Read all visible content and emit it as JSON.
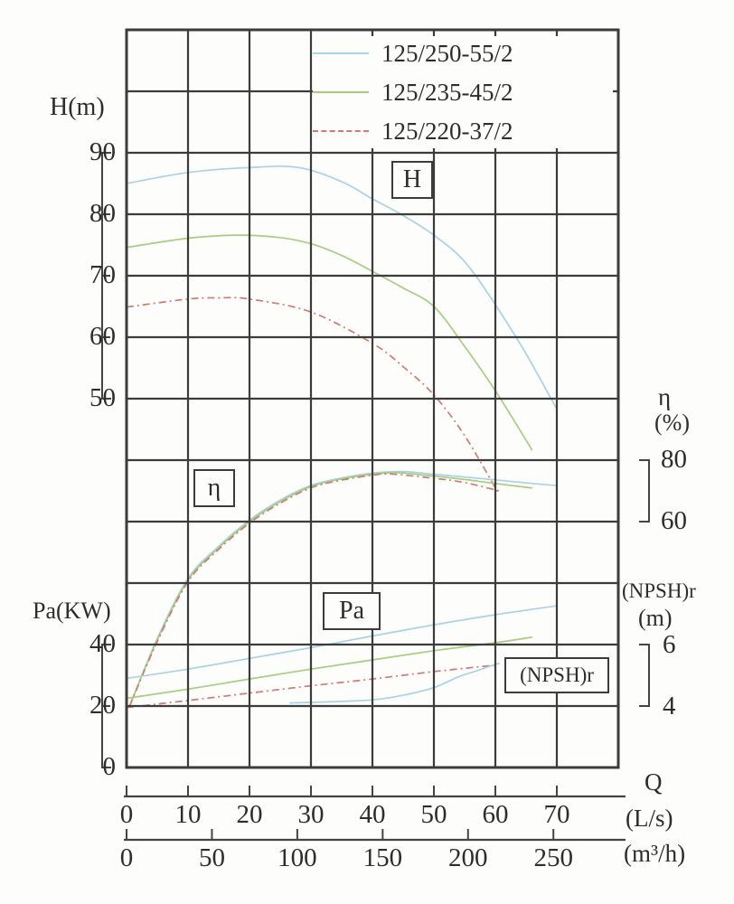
{
  "legend": {
    "items": [
      {
        "label": "125/250-55/2",
        "color": "#a9d2e4",
        "dash": "solid"
      },
      {
        "label": "125/235-45/2",
        "color": "#a6cd80",
        "dash": "solid"
      },
      {
        "label": "125/220-37/2",
        "color": "#cf7b73",
        "dash": "dashed"
      }
    ]
  },
  "axes": {
    "h": {
      "label": "H(m)",
      "ticks": [
        90,
        80,
        70,
        60,
        50
      ]
    },
    "pa": {
      "label": "Pa(KW)",
      "ticks": [
        40,
        20,
        0
      ]
    },
    "eta": {
      "label": "η",
      "unit": "(%)",
      "ticks": [
        80,
        60
      ]
    },
    "npsh": {
      "label": "(NPSH)r",
      "unit": "(m)",
      "ticks": [
        6,
        4
      ]
    },
    "q_ls": {
      "label": "Q",
      "unit": "(L/s)",
      "ticks": [
        0,
        10,
        20,
        30,
        40,
        50,
        60,
        70
      ]
    },
    "q_m3h": {
      "unit": "(m³/h)",
      "ticks": [
        0,
        50,
        100,
        150,
        200,
        250
      ]
    }
  },
  "curve_labels": {
    "h": "H",
    "eta": "η",
    "pa": "Pa",
    "npsh": "(NPSH)r"
  },
  "chart_data": {
    "type": "line",
    "title": "",
    "xlabel": "Q",
    "x_units": [
      "L/s",
      "m³/h"
    ],
    "x_range_ls": [
      0,
      80
    ],
    "grid": true,
    "legend_position": "top-right",
    "y_scales": {
      "H": {
        "unit": "m",
        "labeled_range": [
          50,
          90
        ]
      },
      "eta": {
        "unit": "%",
        "labeled_range": [
          60,
          80
        ]
      },
      "Pa": {
        "unit": "KW",
        "labeled_range": [
          0,
          40
        ]
      },
      "NPSH": {
        "unit": "m",
        "labeled_range": [
          4,
          6
        ]
      }
    },
    "series": [
      {
        "name": "125/250-55/2",
        "quantity": "H",
        "unit": "m",
        "color": "#a9d2e4",
        "dash": null,
        "points": [
          [
            0,
            85
          ],
          [
            10,
            86.8
          ],
          [
            20,
            87.6
          ],
          [
            28,
            87.6
          ],
          [
            35,
            85.3
          ],
          [
            40,
            82.5
          ],
          [
            45,
            79.8
          ],
          [
            50,
            76.6
          ],
          [
            55,
            72.3
          ],
          [
            60,
            65.3
          ],
          [
            65,
            57.3
          ],
          [
            70,
            48.3
          ]
        ]
      },
      {
        "name": "125/235-45/2",
        "quantity": "H",
        "unit": "m",
        "color": "#a6cd80",
        "dash": null,
        "points": [
          [
            0,
            74.6
          ],
          [
            10,
            76.1
          ],
          [
            18,
            76.6
          ],
          [
            25,
            76.2
          ],
          [
            30,
            75.2
          ],
          [
            35,
            73.3
          ],
          [
            40,
            70.7
          ],
          [
            45,
            68
          ],
          [
            50,
            65
          ],
          [
            55,
            58.5
          ],
          [
            60,
            51.3
          ],
          [
            66,
            41.6
          ]
        ]
      },
      {
        "name": "125/220-37/2",
        "quantity": "H",
        "unit": "m",
        "color": "#cf7b73",
        "dash": [
          8,
          4,
          2,
          4
        ],
        "points": [
          [
            0,
            64.9
          ],
          [
            10,
            66.2
          ],
          [
            15,
            66.4
          ],
          [
            20,
            66.2
          ],
          [
            30,
            64.1
          ],
          [
            40,
            59
          ],
          [
            45,
            55.2
          ],
          [
            50,
            50.6
          ],
          [
            55,
            44
          ],
          [
            60.5,
            34.6
          ]
        ]
      },
      {
        "name": "125/250-55/2",
        "quantity": "eta",
        "unit": "%",
        "color": "#a9d2e4",
        "dash": null,
        "points": [
          [
            0.5,
            0
          ],
          [
            5,
            22
          ],
          [
            10,
            41.5
          ],
          [
            15,
            52
          ],
          [
            20,
            60.5
          ],
          [
            25,
            67
          ],
          [
            30,
            71.8
          ],
          [
            35,
            74.2
          ],
          [
            40,
            75.8
          ],
          [
            45,
            76.3
          ],
          [
            50,
            75.4
          ],
          [
            55,
            74.5
          ],
          [
            60,
            73.6
          ],
          [
            65,
            72.6
          ],
          [
            70,
            71.7
          ]
        ]
      },
      {
        "name": "125/235-45/2",
        "quantity": "eta",
        "unit": "%",
        "color": "#a6cd80",
        "dash": null,
        "points": [
          [
            0.5,
            0
          ],
          [
            5,
            21.5
          ],
          [
            10,
            41
          ],
          [
            15,
            51.5
          ],
          [
            20,
            60
          ],
          [
            25,
            66.5
          ],
          [
            30,
            71.4
          ],
          [
            35,
            73.9
          ],
          [
            40,
            75.4
          ],
          [
            44,
            75.9
          ],
          [
            50,
            74.8
          ],
          [
            55,
            73.7
          ],
          [
            60,
            72.4
          ],
          [
            66,
            70.9
          ]
        ]
      },
      {
        "name": "125/220-37/2",
        "quantity": "eta",
        "unit": "%",
        "color": "#cf7b73",
        "dash": [
          8,
          4,
          2,
          4
        ],
        "points": [
          [
            0.5,
            0
          ],
          [
            5,
            21
          ],
          [
            10,
            40.5
          ],
          [
            15,
            51
          ],
          [
            20,
            59.5
          ],
          [
            25,
            66
          ],
          [
            30,
            71
          ],
          [
            35,
            73.5
          ],
          [
            40,
            75.1
          ],
          [
            43,
            75.5
          ],
          [
            50,
            74.1
          ],
          [
            55,
            72.7
          ],
          [
            60.6,
            70
          ]
        ]
      },
      {
        "name": "125/250-55/2",
        "quantity": "Pa",
        "unit": "KW",
        "color": "#a9d2e4",
        "dash": null,
        "points": [
          [
            0,
            29
          ],
          [
            10,
            32
          ],
          [
            20,
            35.5
          ],
          [
            30,
            39
          ],
          [
            40,
            42.8
          ],
          [
            50,
            46.4
          ],
          [
            60,
            49.7
          ],
          [
            70,
            52.6
          ]
        ]
      },
      {
        "name": "125/235-45/2",
        "quantity": "Pa",
        "unit": "KW",
        "color": "#a6cd80",
        "dash": null,
        "points": [
          [
            0,
            22.5
          ],
          [
            10,
            25.5
          ],
          [
            20,
            28.8
          ],
          [
            30,
            32
          ],
          [
            40,
            35
          ],
          [
            50,
            38
          ],
          [
            60,
            40.6
          ],
          [
            66,
            42.4
          ]
        ]
      },
      {
        "name": "125/220-37/2",
        "quantity": "Pa",
        "unit": "KW",
        "color": "#cf7b73",
        "dash": [
          8,
          4,
          2,
          4
        ],
        "points": [
          [
            0,
            19.5
          ],
          [
            10,
            21.8
          ],
          [
            20,
            24.2
          ],
          [
            30,
            26.6
          ],
          [
            40,
            28.8
          ],
          [
            50,
            31.2
          ],
          [
            60.5,
            33.4
          ]
        ]
      },
      {
        "name": "125/250-55/2",
        "quantity": "NPSH",
        "unit": "m",
        "color": "#a9d2e4",
        "dash": null,
        "points": [
          [
            26.5,
            4.1
          ],
          [
            35,
            4.15
          ],
          [
            40,
            4.2
          ],
          [
            45,
            4.35
          ],
          [
            50,
            4.6
          ],
          [
            54,
            4.95
          ],
          [
            57,
            5.15
          ],
          [
            60.7,
            5.4
          ]
        ]
      }
    ]
  }
}
